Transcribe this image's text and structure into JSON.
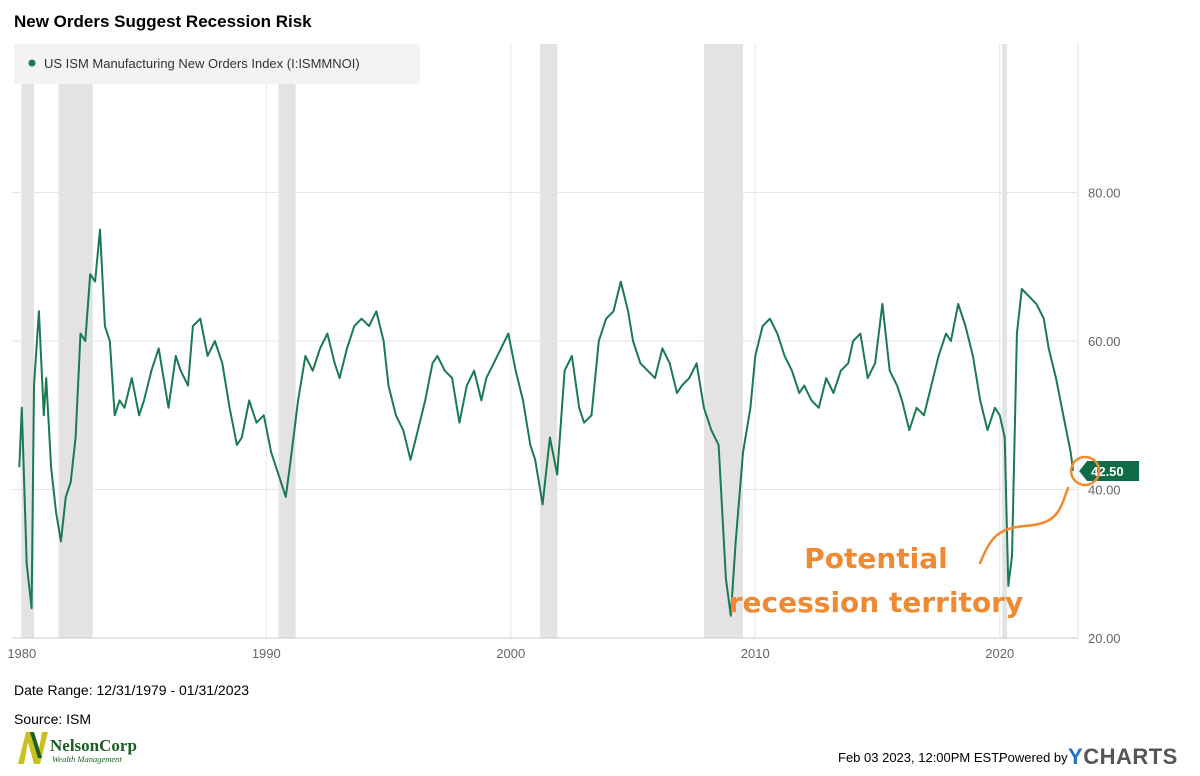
{
  "title": "New Orders Suggest Recession Risk",
  "legend": {
    "label": "US ISM Manufacturing New Orders Index (I:ISMMNOI)",
    "color": "#1a7a52"
  },
  "last_value_label": "42.50",
  "annotation": {
    "line1": "Potential",
    "line2": "recession territory",
    "color": "#f08a32"
  },
  "footer": {
    "date_range": "Date Range: 12/31/1979 - 01/31/2023",
    "source": "Source: ISM",
    "timestamp": "Feb 03 2023, 12:00PM EST.",
    "powered_by": "Powered by",
    "brand_y": "Y",
    "brand_rest": "CHARTS"
  },
  "logo": {
    "name": "NelsonCorp",
    "subtitle": "Wealth Management",
    "color": "#1b5e20",
    "accent": "#c9c022"
  },
  "chart_data": {
    "type": "line",
    "ylim": [
      20,
      100
    ],
    "xlim": [
      1979.6,
      2023.2
    ],
    "y_ticks": [
      20,
      40,
      60,
      80
    ],
    "y_tick_labels": [
      "20.00",
      "40.00",
      "60.00",
      "80.00"
    ],
    "x_ticks": [
      1980,
      1990,
      2000,
      2010,
      2020
    ],
    "x_tick_labels": [
      "1980",
      "1990",
      "2000",
      "2010",
      "2020"
    ],
    "grid": true,
    "legend_position": "top-left",
    "recession_bands": [
      [
        1980.0,
        1980.5
      ],
      [
        1981.5,
        1982.9
      ],
      [
        1990.5,
        1991.2
      ],
      [
        2001.2,
        2001.9
      ],
      [
        2007.9,
        2009.5
      ],
      [
        2020.1,
        2020.3
      ]
    ],
    "series": [
      {
        "name": "US ISM Manufacturing New Orders Index (I:ISMMNOI)",
        "color": "#1a7a52",
        "x": [
          1979.9,
          1980.0,
          1980.2,
          1980.4,
          1980.5,
          1980.7,
          1980.9,
          1981.0,
          1981.2,
          1981.4,
          1981.6,
          1981.8,
          1982.0,
          1982.2,
          1982.4,
          1982.6,
          1982.8,
          1983.0,
          1983.2,
          1983.4,
          1983.6,
          1983.8,
          1984.0,
          1984.2,
          1984.5,
          1984.8,
          1985.0,
          1985.3,
          1985.6,
          1986.0,
          1986.3,
          1986.5,
          1986.8,
          1987.0,
          1987.3,
          1987.6,
          1987.9,
          1988.2,
          1988.5,
          1988.8,
          1989.0,
          1989.3,
          1989.6,
          1989.9,
          1990.2,
          1990.5,
          1990.8,
          1991.0,
          1991.3,
          1991.6,
          1991.9,
          1992.2,
          1992.5,
          1992.8,
          1993.0,
          1993.3,
          1993.6,
          1993.9,
          1994.2,
          1994.5,
          1994.8,
          1995.0,
          1995.3,
          1995.6,
          1995.9,
          1996.2,
          1996.5,
          1996.8,
          1997.0,
          1997.3,
          1997.6,
          1997.9,
          1998.2,
          1998.5,
          1998.8,
          1999.0,
          1999.3,
          1999.6,
          1999.9,
          2000.2,
          2000.5,
          2000.8,
          2001.0,
          2001.3,
          2001.6,
          2001.9,
          2002.2,
          2002.5,
          2002.8,
          2003.0,
          2003.3,
          2003.6,
          2003.9,
          2004.2,
          2004.5,
          2004.8,
          2005.0,
          2005.3,
          2005.6,
          2005.9,
          2006.2,
          2006.5,
          2006.8,
          2007.0,
          2007.3,
          2007.6,
          2007.9,
          2008.2,
          2008.5,
          2008.8,
          2009.0,
          2009.2,
          2009.5,
          2009.8,
          2010.0,
          2010.3,
          2010.6,
          2010.9,
          2011.2,
          2011.5,
          2011.8,
          2012.0,
          2012.3,
          2012.6,
          2012.9,
          2013.2,
          2013.5,
          2013.8,
          2014.0,
          2014.3,
          2014.6,
          2014.9,
          2015.2,
          2015.5,
          2015.8,
          2016.0,
          2016.3,
          2016.6,
          2016.9,
          2017.2,
          2017.5,
          2017.8,
          2018.0,
          2018.3,
          2018.6,
          2018.9,
          2019.2,
          2019.5,
          2019.8,
          2020.0,
          2020.2,
          2020.35,
          2020.5,
          2020.7,
          2020.9,
          2021.2,
          2021.5,
          2021.8,
          2022.0,
          2022.3,
          2022.6,
          2022.9,
          2023.0
        ],
        "values": [
          43,
          51,
          30,
          24,
          54,
          64,
          50,
          55,
          43,
          37,
          33,
          39,
          41,
          47,
          61,
          60,
          69,
          68,
          75,
          62,
          60,
          50,
          52,
          51,
          55,
          50,
          52,
          56,
          59,
          51,
          58,
          56,
          54,
          62,
          63,
          58,
          60,
          57,
          51,
          46,
          47,
          52,
          49,
          50,
          45,
          42,
          39,
          44,
          52,
          58,
          56,
          59,
          61,
          57,
          55,
          59,
          62,
          63,
          62,
          64,
          60,
          54,
          50,
          48,
          44,
          48,
          52,
          57,
          58,
          56,
          55,
          49,
          54,
          56,
          52,
          55,
          57,
          59,
          61,
          56,
          52,
          46,
          44,
          38,
          47,
          42,
          56,
          58,
          51,
          49,
          50,
          60,
          63,
          64,
          68,
          64,
          60,
          57,
          56,
          55,
          59,
          57,
          53,
          54,
          55,
          57,
          51,
          48,
          46,
          28,
          23,
          33,
          45,
          51,
          58,
          62,
          63,
          61,
          58,
          56,
          53,
          54,
          52,
          51,
          55,
          53,
          56,
          57,
          60,
          61,
          55,
          57,
          65,
          56,
          54,
          52,
          48,
          51,
          50,
          54,
          58,
          61,
          60,
          65,
          62,
          58,
          52,
          48,
          51,
          50,
          47,
          27,
          31,
          61,
          67,
          66,
          65,
          63,
          59,
          55,
          50,
          45,
          42.5
        ]
      }
    ]
  }
}
